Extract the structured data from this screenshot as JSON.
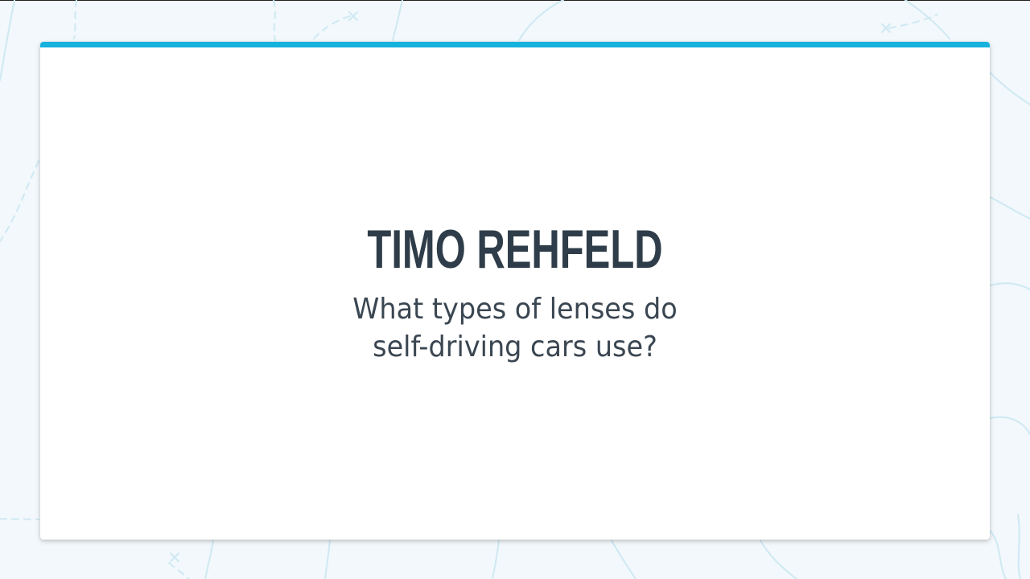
{
  "slide": {
    "presenter_name": "TIMO REHFELD",
    "question_lines": [
      "What types of lenses do",
      "self-driving cars use?"
    ]
  },
  "colors": {
    "background": "#f2f8fb",
    "card": "#ffffff",
    "accent": "#14b2dc",
    "title_text": "#2e3d49",
    "body_text": "#3a4651",
    "pattern_lines": "#cfe9f3"
  }
}
